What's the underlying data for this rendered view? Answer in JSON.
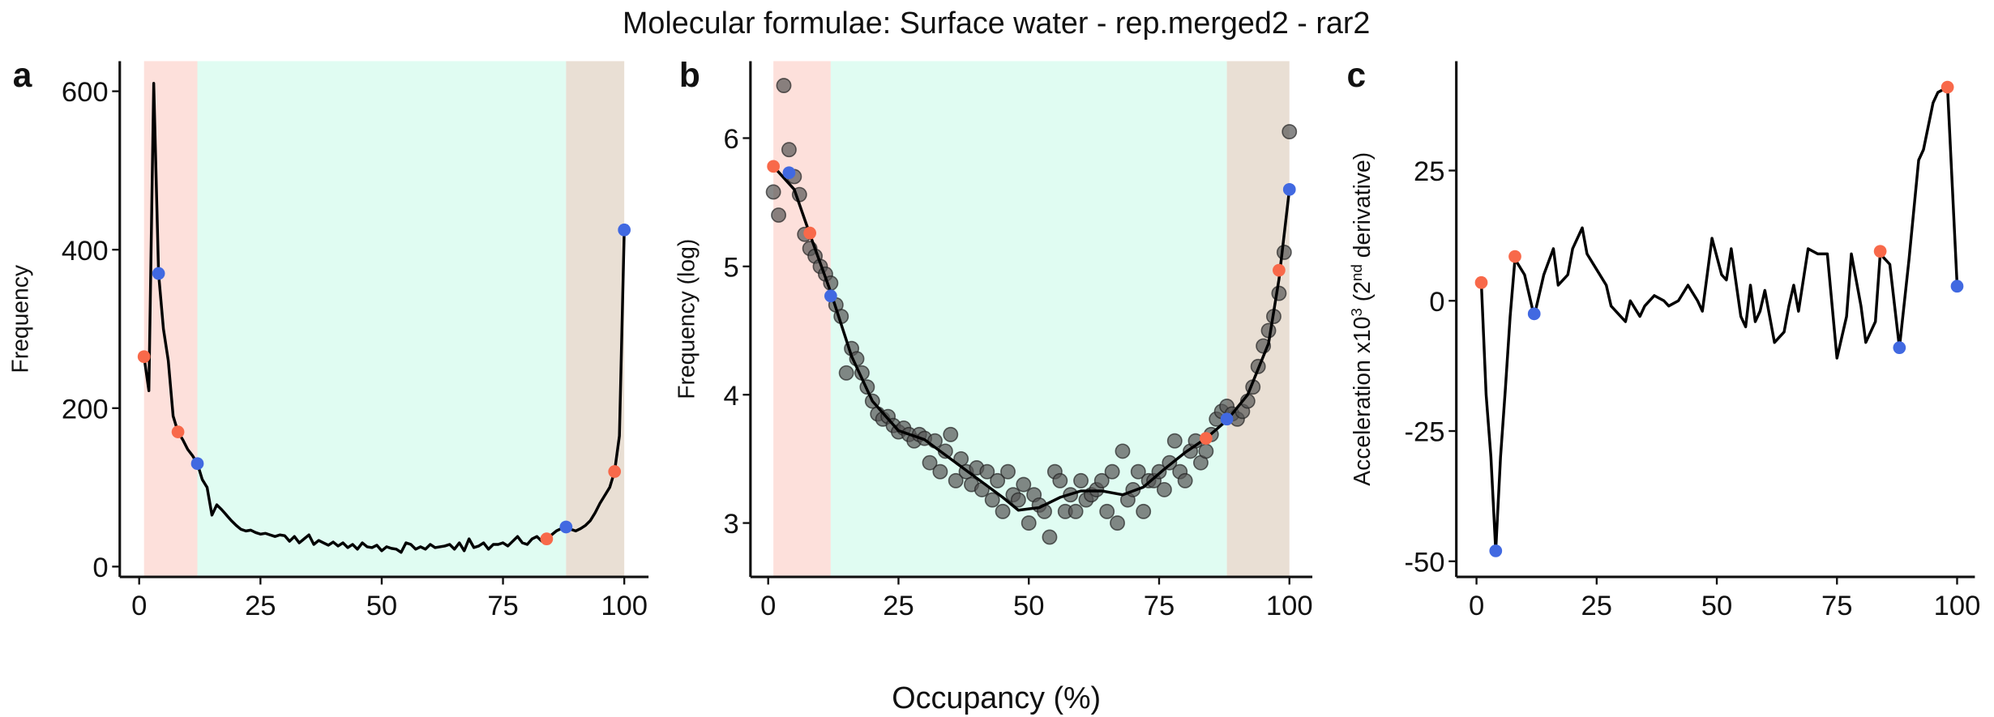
{
  "title": "Molecular formulae: Surface water - rep.merged2 - rar2",
  "xlabel": "Occupancy (%)",
  "chart_data": [
    {
      "type": "line",
      "label": "a",
      "ylabel": "Frequency",
      "xlim": [
        -4,
        105
      ],
      "ylim": [
        -13,
        638
      ],
      "xticks": [
        0,
        25,
        50,
        75,
        100
      ],
      "yticks": [
        0,
        200,
        400,
        600
      ],
      "bands": [
        {
          "from": 1,
          "to": 12,
          "color": "#fde0db"
        },
        {
          "from": 12,
          "to": 88,
          "color": "#e0fcf2"
        },
        {
          "from": 88,
          "to": 100,
          "color": "#e9dfd4"
        }
      ],
      "series": [
        {
          "type": "line",
          "color": "#000000",
          "x": [
            1,
            2,
            3,
            4,
            5,
            6,
            7,
            8,
            9,
            10,
            11,
            12,
            13,
            14,
            15,
            16,
            17,
            18,
            19,
            20,
            21,
            22,
            23,
            24,
            25,
            26,
            27,
            28,
            29,
            30,
            31,
            32,
            33,
            34,
            35,
            36,
            37,
            38,
            39,
            40,
            41,
            42,
            43,
            44,
            45,
            46,
            47,
            48,
            49,
            50,
            51,
            52,
            53,
            54,
            55,
            56,
            57,
            58,
            59,
            60,
            61,
            62,
            63,
            64,
            65,
            66,
            67,
            68,
            69,
            70,
            71,
            72,
            73,
            74,
            75,
            76,
            77,
            78,
            79,
            80,
            81,
            82,
            83,
            84,
            85,
            86,
            87,
            88,
            89,
            90,
            91,
            92,
            93,
            94,
            95,
            96,
            97,
            98,
            99,
            100
          ],
          "values": [
            265,
            222,
            610,
            370,
            300,
            260,
            190,
            170,
            160,
            148,
            140,
            130,
            110,
            100,
            65,
            78,
            72,
            65,
            58,
            52,
            47,
            45,
            46,
            43,
            41,
            42,
            40,
            38,
            40,
            39,
            32,
            38,
            30,
            35,
            40,
            28,
            33,
            30,
            27,
            31,
            26,
            30,
            24,
            28,
            22,
            30,
            25,
            24,
            27,
            20,
            25,
            23,
            22,
            18,
            30,
            28,
            22,
            25,
            22,
            28,
            24,
            25,
            26,
            28,
            22,
            30,
            20,
            35,
            24,
            26,
            30,
            22,
            28,
            28,
            30,
            26,
            32,
            38,
            30,
            28,
            35,
            38,
            32,
            35,
            40,
            45,
            48,
            50,
            47,
            45,
            48,
            52,
            58,
            68,
            80,
            90,
            100,
            120,
            165,
            425
          ]
        },
        {
          "type": "scatter",
          "color": "#f8694a",
          "x": [
            1,
            8,
            84,
            98
          ],
          "values": [
            265,
            170,
            35,
            120
          ]
        },
        {
          "type": "scatter",
          "color": "#4169e1",
          "x": [
            4,
            12,
            88,
            100
          ],
          "values": [
            370,
            130,
            50,
            425
          ]
        }
      ]
    },
    {
      "type": "scatter",
      "label": "b",
      "ylabel": "Frequency (log)",
      "xlim": [
        -3.4,
        104.4
      ],
      "ylim": [
        2.58,
        6.6
      ],
      "xticks": [
        0,
        25,
        50,
        75,
        100
      ],
      "yticks": [
        3,
        4,
        5,
        6
      ],
      "bands": [
        {
          "from": 1,
          "to": 12,
          "color": "#fde0db"
        },
        {
          "from": 12,
          "to": 88,
          "color": "#e0fcf2"
        },
        {
          "from": 88,
          "to": 100,
          "color": "#e9dfd4"
        }
      ],
      "series": [
        {
          "type": "scatter-gray",
          "color": "#555555",
          "x": [
            1,
            2,
            3,
            4,
            5,
            6,
            7,
            8,
            9,
            10,
            11,
            12,
            13,
            14,
            15,
            16,
            17,
            18,
            19,
            20,
            21,
            22,
            23,
            24,
            25,
            26,
            27,
            28,
            29,
            30,
            31,
            32,
            33,
            34,
            35,
            36,
            37,
            38,
            39,
            40,
            41,
            42,
            43,
            44,
            45,
            46,
            47,
            48,
            49,
            50,
            51,
            52,
            53,
            54,
            55,
            56,
            57,
            58,
            59,
            60,
            61,
            62,
            63,
            64,
            65,
            66,
            67,
            68,
            69,
            70,
            71,
            72,
            73,
            74,
            75,
            76,
            77,
            78,
            79,
            80,
            81,
            82,
            83,
            84,
            85,
            86,
            87,
            88,
            89,
            90,
            91,
            92,
            93,
            94,
            95,
            96,
            97,
            98,
            99,
            100
          ],
          "values": [
            5.58,
            5.4,
            6.41,
            5.91,
            5.7,
            5.56,
            5.25,
            5.14,
            5.08,
            5.0,
            4.94,
            4.87,
            4.7,
            4.61,
            4.17,
            4.36,
            4.28,
            4.17,
            4.06,
            3.95,
            3.85,
            3.81,
            3.83,
            3.76,
            3.71,
            3.74,
            3.69,
            3.64,
            3.69,
            3.66,
            3.47,
            3.64,
            3.4,
            3.56,
            3.69,
            3.33,
            3.5,
            3.4,
            3.3,
            3.43,
            3.26,
            3.4,
            3.18,
            3.33,
            3.09,
            3.4,
            3.22,
            3.18,
            3.3,
            3.0,
            3.22,
            3.14,
            3.09,
            2.89,
            3.4,
            3.33,
            3.09,
            3.22,
            3.09,
            3.33,
            3.18,
            3.22,
            3.26,
            3.33,
            3.09,
            3.4,
            3.0,
            3.56,
            3.18,
            3.26,
            3.4,
            3.09,
            3.33,
            3.33,
            3.4,
            3.26,
            3.47,
            3.64,
            3.4,
            3.33,
            3.56,
            3.64,
            3.47,
            3.56,
            3.69,
            3.81,
            3.87,
            3.91,
            3.85,
            3.81,
            3.87,
            3.95,
            4.06,
            4.22,
            4.38,
            4.5,
            4.61,
            4.79,
            5.11,
            6.05
          ]
        },
        {
          "type": "line",
          "color": "#000000",
          "x": [
            1,
            5,
            8,
            12,
            16,
            20,
            25,
            30,
            35,
            40,
            45,
            48,
            52,
            56,
            60,
            64,
            68,
            72,
            76,
            80,
            84,
            88,
            92,
            96,
            98,
            100
          ],
          "values": [
            5.78,
            5.6,
            5.25,
            4.8,
            4.3,
            3.95,
            3.72,
            3.65,
            3.5,
            3.35,
            3.2,
            3.1,
            3.12,
            3.2,
            3.25,
            3.25,
            3.22,
            3.28,
            3.42,
            3.55,
            3.66,
            3.8,
            4.0,
            4.4,
            4.9,
            5.6
          ]
        },
        {
          "type": "scatter",
          "color": "#f8694a",
          "x": [
            1,
            8,
            84,
            98
          ],
          "values": [
            5.78,
            5.26,
            3.66,
            4.97
          ]
        },
        {
          "type": "scatter",
          "color": "#4169e1",
          "x": [
            4,
            12,
            88,
            100
          ],
          "values": [
            5.73,
            4.77,
            3.81,
            5.6
          ]
        }
      ]
    },
    {
      "type": "line",
      "label": "c",
      "ylabel": [
        {
          "text": "Acceleration x10"
        },
        {
          "text": "3",
          "sup": true
        },
        {
          "text": " (2"
        },
        {
          "text": "nd",
          "sup": true
        },
        {
          "text": " derivative)"
        }
      ],
      "xlim": [
        -4.2,
        103.7
      ],
      "ylim": [
        -53,
        46
      ],
      "xticks": [
        0,
        25,
        50,
        75,
        100
      ],
      "yticks": [
        25,
        0,
        -25,
        -50
      ],
      "series": [
        {
          "type": "line",
          "color": "#000000",
          "x": [
            1,
            2,
            3,
            4,
            5,
            6,
            7,
            8,
            10,
            12,
            14,
            16,
            17,
            19,
            20,
            22,
            23,
            25,
            27,
            28,
            30,
            31,
            32,
            34,
            35,
            37,
            39,
            40,
            42,
            44,
            46,
            47,
            49,
            51,
            52,
            53,
            55,
            56,
            57,
            58,
            59,
            60,
            62,
            64,
            65,
            66,
            67,
            69,
            71,
            73,
            75,
            77,
            78,
            80,
            81,
            83,
            84,
            86,
            88,
            90,
            92,
            93,
            95,
            96,
            98,
            100
          ],
          "values": [
            3.5,
            -18,
            -30,
            -48,
            -30,
            -17,
            -3,
            8,
            5,
            -3,
            5,
            10,
            3,
            5,
            10,
            14,
            9,
            6,
            3,
            -1,
            -3,
            -4,
            0,
            -3,
            -1,
            1,
            0,
            -1,
            0,
            3,
            0,
            -2,
            12,
            5,
            4,
            10,
            -3,
            -5,
            3,
            -4,
            -2,
            2,
            -8,
            -6,
            -1,
            3,
            -2,
            10,
            9,
            9,
            -11,
            -3,
            9,
            -1,
            -8,
            -4,
            9,
            7,
            -9,
            8,
            27,
            29,
            38,
            40,
            41,
            3
          ]
        },
        {
          "type": "scatter",
          "color": "#f8694a",
          "x": [
            1,
            8,
            84,
            98
          ],
          "values": [
            3.5,
            8.5,
            9.5,
            41
          ]
        },
        {
          "type": "scatter",
          "color": "#4169e1",
          "x": [
            4,
            12,
            88,
            100
          ],
          "values": [
            -48,
            -2.5,
            -9,
            2.8
          ]
        }
      ]
    }
  ]
}
